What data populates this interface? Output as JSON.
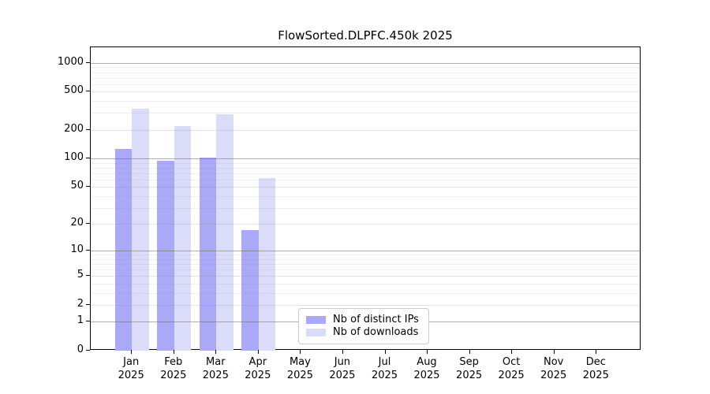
{
  "title": "FlowSorted.DLPFC.450k 2025",
  "chart_data": {
    "type": "bar",
    "title": "FlowSorted.DLPFC.450k 2025",
    "yscale": "log10(1+x)",
    "ylim": [
      0,
      1455
    ],
    "yticks": [
      0,
      1,
      2,
      5,
      10,
      20,
      50,
      100,
      200,
      500,
      1000
    ],
    "grid": true,
    "legend_position": "inside-bottom-center",
    "categories": [
      {
        "month": "Jan",
        "year": "2025"
      },
      {
        "month": "Feb",
        "year": "2025"
      },
      {
        "month": "Mar",
        "year": "2025"
      },
      {
        "month": "Apr",
        "year": "2025"
      },
      {
        "month": "May",
        "year": "2025"
      },
      {
        "month": "Jun",
        "year": "2025"
      },
      {
        "month": "Jul",
        "year": "2025"
      },
      {
        "month": "Aug",
        "year": "2025"
      },
      {
        "month": "Sep",
        "year": "2025"
      },
      {
        "month": "Oct",
        "year": "2025"
      },
      {
        "month": "Nov",
        "year": "2025"
      },
      {
        "month": "Dec",
        "year": "2025"
      }
    ],
    "series": [
      {
        "name": "Nb of distinct IPs",
        "color": "#a9a9f7",
        "values": [
          125,
          95,
          103,
          17,
          null,
          null,
          null,
          null,
          null,
          null,
          null,
          null
        ]
      },
      {
        "name": "Nb of downloads",
        "color": "#dbdbfa",
        "values": [
          330,
          218,
          290,
          62,
          null,
          null,
          null,
          null,
          null,
          null,
          null,
          null
        ]
      }
    ]
  },
  "legend": {
    "items": [
      "Nb of distinct IPs",
      "Nb of downloads"
    ]
  }
}
